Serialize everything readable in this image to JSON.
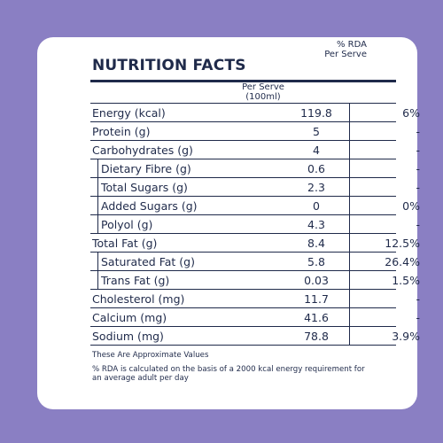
{
  "title": "NUTRITION FACTS",
  "columns": {
    "per_serve": "Per Serve\n(100ml)",
    "per_serve_line1": "Per Serve",
    "per_serve_line2": "(100ml)",
    "rda_line1": "% RDA",
    "rda_line2": "Per Serve"
  },
  "rows": [
    {
      "label": "Energy (kcal)",
      "value": "119.8",
      "rda": "6%",
      "sub": false
    },
    {
      "label": "Protein (g)",
      "value": "5",
      "rda": "-",
      "sub": false
    },
    {
      "label": "Carbohydrates (g)",
      "value": "4",
      "rda": "-",
      "sub": false
    },
    {
      "label": "Dietary Fibre (g)",
      "value": "0.6",
      "rda": "-",
      "sub": true
    },
    {
      "label": "Total Sugars (g)",
      "value": "2.3",
      "rda": "-",
      "sub": true
    },
    {
      "label": "Added Sugars (g)",
      "value": "0",
      "rda": "0%",
      "sub": true
    },
    {
      "label": "Polyol (g)",
      "value": "4.3",
      "rda": "-",
      "sub": true
    },
    {
      "label": "Total Fat (g)",
      "value": "8.4",
      "rda": "12.5%",
      "sub": false
    },
    {
      "label": "Saturated Fat (g)",
      "value": "5.8",
      "rda": "26.4%",
      "sub": true
    },
    {
      "label": "Trans Fat (g)",
      "value": "0.03",
      "rda": "1.5%",
      "sub": true
    },
    {
      "label": "Cholesterol (mg)",
      "value": "11.7",
      "rda": "-",
      "sub": false
    },
    {
      "label": "Calcium (mg)",
      "value": "41.6",
      "rda": "-",
      "sub": false
    },
    {
      "label": "Sodium (mg)",
      "value": "78.8",
      "rda": "3.9%",
      "sub": false
    }
  ],
  "footnotes": {
    "approx": "These Are Approximate Values",
    "rda_note": "% RDA is calculated on the basis of a 2000 kcal energy requirement for an average adult per day"
  },
  "colors": {
    "background": "#8a7fc3",
    "card": "#ffffff",
    "ink": "#1f2a4a"
  }
}
